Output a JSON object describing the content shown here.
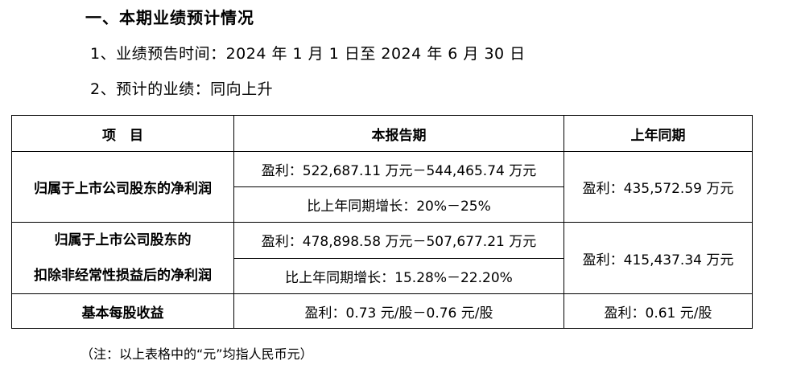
{
  "section_title": "一、本期业绩预计情况",
  "items": {
    "period": "1、业绩预告时间：2024 年 1 月 1 日至 2024 年 6 月 30 日",
    "trend": "2、预计的业绩：同向上升"
  },
  "table": {
    "headers": [
      "项　目",
      "本报告期",
      "上年同期"
    ],
    "rows": [
      {
        "label": "归属于上市公司股东的净利润",
        "current_profit": "盈利：522,687.11 万元－544,465.74 万元",
        "current_growth": "比上年同期增长：20%－25%",
        "prior": "盈利：435,572.59 万元"
      },
      {
        "label_line1": "归属于上市公司股东的",
        "label_line2": "扣除非经常性损益后的净利润",
        "current_profit": "盈利：478,898.58 万元－507,677.21 万元",
        "current_growth": "比上年同期增长：15.28%－22.20%",
        "prior": "盈利：415,437.34 万元"
      },
      {
        "label": "基本每股收益",
        "current": "盈利：0.73 元/股－0.76 元/股",
        "prior": "盈利：0.61 元/股"
      }
    ]
  },
  "note": "（注：以上表格中的“元”均指人民币元）"
}
